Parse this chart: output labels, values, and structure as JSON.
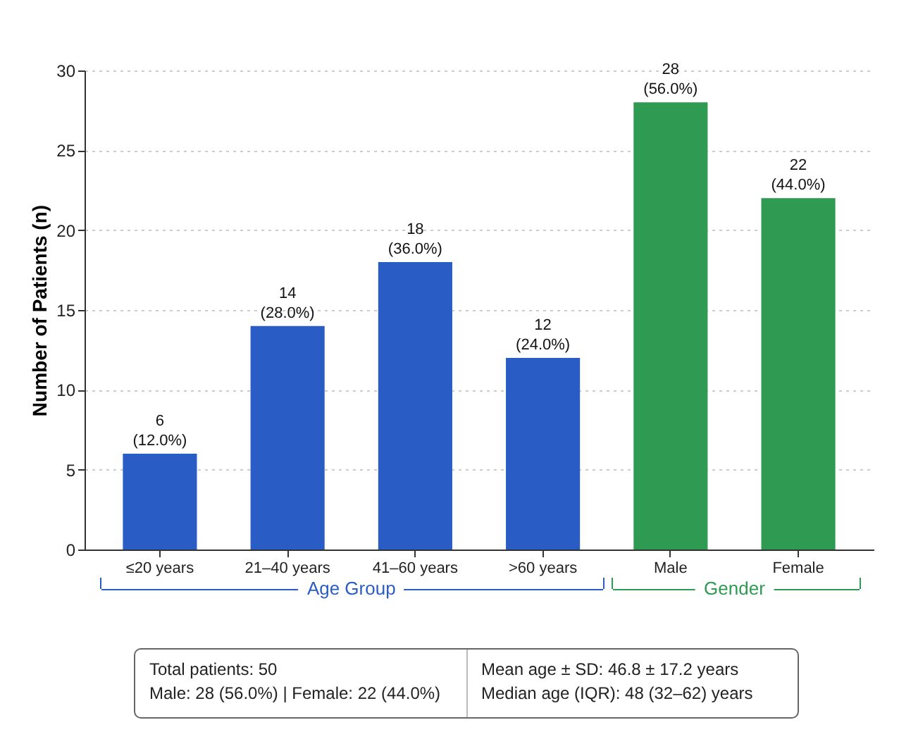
{
  "chart_data": {
    "type": "bar",
    "ylabel": "Number of Patients (n)",
    "categories": [
      "≤20 years",
      "21–40 years",
      "41–60 years",
      ">60 years",
      "Male",
      "Female"
    ],
    "values": [
      6,
      14,
      18,
      12,
      28,
      22
    ],
    "colors": [
      "#2a5cc6",
      "#2a5cc6",
      "#2a5cc6",
      "#2a5cc6",
      "#2e9a52",
      "#2e9a52"
    ],
    "value_labels": [
      "6\n(12.0%)",
      "14\n(28.0%)",
      "18\n(36.0%)",
      "12\n(24.0%)",
      "28\n(56.0%)",
      "22\n(44.0%)"
    ],
    "ylim": [
      0,
      30
    ],
    "yticks": [
      0,
      5,
      10,
      15,
      20,
      25,
      30
    ],
    "grid": "y",
    "annotations": [
      "Age Group",
      "Gender",
      "Total patients: 50",
      "Male: 28 (56.0%) | Female: 22 (44.0%)",
      "Mean age ± SD: 46.8 ± 17.2 years",
      "Median age (IQR): 48 (32–62) years"
    ]
  }
}
